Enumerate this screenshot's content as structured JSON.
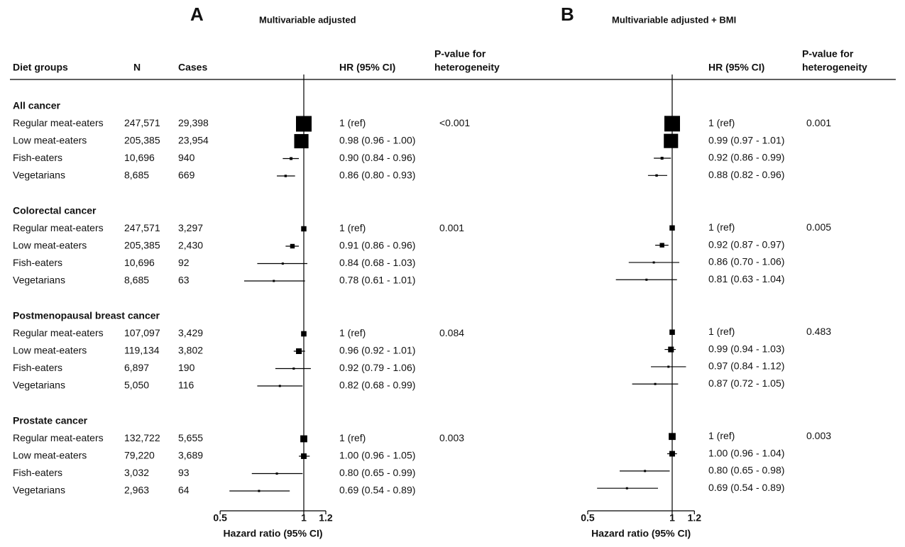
{
  "table": {
    "headers": [
      "Diet groups",
      "N",
      "Cases"
    ],
    "groups": [
      {
        "name": "All cancer",
        "rows": [
          [
            "Regular meat-eaters",
            "247,571",
            "29,398"
          ],
          [
            "Low meat-eaters",
            "205,385",
            "23,954"
          ],
          [
            "Fish-eaters",
            "10,696",
            "940"
          ],
          [
            "Vegetarians",
            "8,685",
            "669"
          ]
        ]
      },
      {
        "name": "Colorectal cancer",
        "rows": [
          [
            "Regular meat-eaters",
            "247,571",
            "3,297"
          ],
          [
            "Low meat-eaters",
            "205,385",
            "2,430"
          ],
          [
            "Fish-eaters",
            "10,696",
            "92"
          ],
          [
            "Vegetarians",
            "8,685",
            "63"
          ]
        ]
      },
      {
        "name": "Postmenopausal breast cancer",
        "rows": [
          [
            "Regular meat-eaters",
            "107,097",
            "3,429"
          ],
          [
            "Low meat-eaters",
            "119,134",
            "3,802"
          ],
          [
            "Fish-eaters",
            "6,897",
            "190"
          ],
          [
            "Vegetarians",
            "5,050",
            "116"
          ]
        ]
      },
      {
        "name": "Prostate cancer",
        "rows": [
          [
            "Regular meat-eaters",
            "132,722",
            "5,655"
          ],
          [
            "Low meat-eaters",
            "79,220",
            "3,689"
          ],
          [
            "Fish-eaters",
            "3,032",
            "93"
          ],
          [
            "Vegetarians",
            "2,963",
            "64"
          ]
        ]
      }
    ]
  },
  "chart_data": [
    {
      "type": "forest",
      "panel": "A",
      "title": "Multivariable adjusted",
      "hr_header": "HR (95% CI)",
      "p_header": [
        "P-value for",
        "heterogeneity"
      ],
      "xlabel": "Hazard ratio (95% CI)",
      "log": true,
      "xlim": [
        0.5,
        1.2
      ],
      "xticks": [
        0.5,
        1,
        1.2
      ],
      "ref_line": 1,
      "groups": [
        {
          "p_value": "<0.001",
          "values": [
            1,
            0.98,
            0.9,
            0.86
          ],
          "lower": [
            null,
            0.96,
            0.84,
            0.8
          ],
          "upper": [
            null,
            1.0,
            0.96,
            0.93
          ],
          "value_labels": [
            "1 (ref)",
            "0.98 (0.96 - 1.00)",
            "0.90 (0.84 - 0.96)",
            "0.86 (0.80 - 0.93)"
          ]
        },
        {
          "p_value": "0.001",
          "values": [
            1,
            0.91,
            0.84,
            0.78
          ],
          "lower": [
            null,
            0.86,
            0.68,
            0.61
          ],
          "upper": [
            null,
            0.96,
            1.03,
            1.01
          ],
          "value_labels": [
            "1 (ref)",
            "0.91 (0.86 - 0.96)",
            "0.84 (0.68 - 1.03)",
            "0.78 (0.61 - 1.01)"
          ]
        },
        {
          "p_value": "0.084",
          "values": [
            1,
            0.96,
            0.92,
            0.82
          ],
          "lower": [
            null,
            0.92,
            0.79,
            0.68
          ],
          "upper": [
            null,
            1.01,
            1.06,
            0.99
          ],
          "value_labels": [
            "1 (ref)",
            "0.96 (0.92 - 1.01)",
            "0.92 (0.79 - 1.06)",
            "0.82 (0.68 - 0.99)"
          ]
        },
        {
          "p_value": "0.003",
          "values": [
            1,
            1.0,
            0.8,
            0.69
          ],
          "lower": [
            null,
            0.96,
            0.65,
            0.54
          ],
          "upper": [
            null,
            1.05,
            0.99,
            0.89
          ],
          "value_labels": [
            "1 (ref)",
            "1.00 (0.96 - 1.05)",
            "0.80 (0.65 - 0.99)",
            "0.69 (0.54 - 0.89)"
          ]
        }
      ]
    },
    {
      "type": "forest",
      "panel": "B",
      "title": "Multivariable adjusted + BMI",
      "hr_header": "HR (95% CI)",
      "p_header": [
        "P-value for",
        "heterogeneity"
      ],
      "xlabel": "Hazard ratio (95% CI)",
      "log": true,
      "xlim": [
        0.5,
        1.2
      ],
      "xticks": [
        0.5,
        1,
        1.2
      ],
      "ref_line": 1,
      "groups": [
        {
          "p_value": "0.001",
          "values": [
            1,
            0.99,
            0.92,
            0.88
          ],
          "lower": [
            null,
            0.97,
            0.86,
            0.82
          ],
          "upper": [
            null,
            1.01,
            0.99,
            0.96
          ],
          "value_labels": [
            "1 (ref)",
            "0.99 (0.97 - 1.01)",
            "0.92 (0.86 - 0.99)",
            "0.88 (0.82 - 0.96)"
          ]
        },
        {
          "p_value": "0.005",
          "values": [
            1,
            0.92,
            0.86,
            0.81
          ],
          "lower": [
            null,
            0.87,
            0.7,
            0.63
          ],
          "upper": [
            null,
            0.97,
            1.06,
            1.04
          ],
          "value_labels": [
            "1 (ref)",
            "0.92 (0.87 - 0.97)",
            "0.86 (0.70 - 1.06)",
            "0.81 (0.63 - 1.04)"
          ]
        },
        {
          "p_value": "0.483",
          "values": [
            1,
            0.99,
            0.97,
            0.87
          ],
          "lower": [
            null,
            0.94,
            0.84,
            0.72
          ],
          "upper": [
            null,
            1.03,
            1.12,
            1.05
          ],
          "value_labels": [
            "1 (ref)",
            "0.99 (0.94 - 1.03)",
            "0.97 (0.84 - 1.12)",
            "0.87 (0.72 - 1.05)"
          ]
        },
        {
          "p_value": "0.003",
          "values": [
            1,
            1.0,
            0.8,
            0.69
          ],
          "lower": [
            null,
            0.96,
            0.65,
            0.54
          ],
          "upper": [
            null,
            1.04,
            0.98,
            0.89
          ],
          "value_labels": [
            "1 (ref)",
            "1.00 (0.96 - 1.04)",
            "0.80 (0.65 - 0.98)",
            "0.69 (0.54 - 0.89)"
          ]
        }
      ]
    }
  ]
}
